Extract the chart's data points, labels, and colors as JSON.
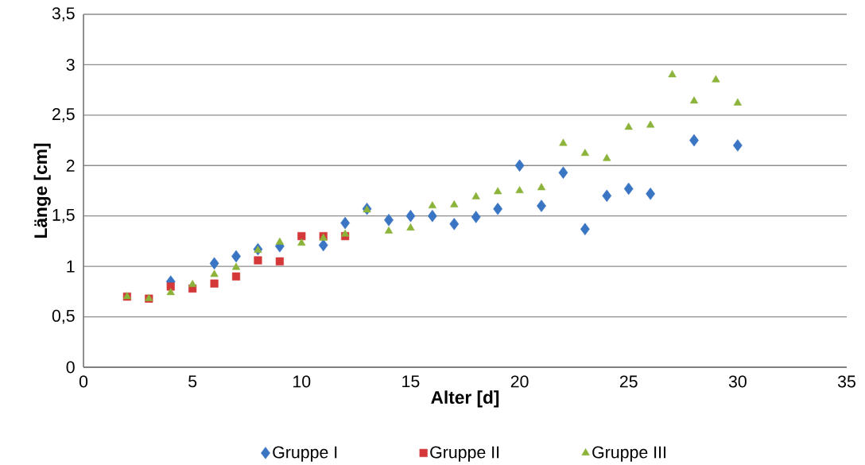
{
  "chart_data": {
    "type": "scatter",
    "xlabel": "Alter [d]",
    "ylabel": "Länge [cm]",
    "xlim": [
      0,
      35
    ],
    "xticks": [
      0,
      5,
      10,
      15,
      20,
      25,
      30,
      35
    ],
    "ylim": [
      0,
      3.5
    ],
    "yticks": [
      0,
      {
        "value": 0.5,
        "label": "0,5"
      },
      1,
      {
        "value": 1.5,
        "label": "1,5"
      },
      2,
      {
        "value": 2.5,
        "label": "2,5"
      },
      3,
      {
        "value": 3.5,
        "label": "3,5"
      }
    ],
    "grid": "y",
    "legend": "bottom",
    "series": [
      {
        "name": "Gruppe I",
        "color": "#3a75c4",
        "marker": "diamond",
        "x": [
          4,
          6,
          7,
          8,
          9,
          11,
          12,
          13,
          14,
          15,
          16,
          17,
          18,
          19,
          20,
          21,
          22,
          23,
          24,
          25,
          26,
          28,
          30
        ],
        "values": [
          0.85,
          1.03,
          1.1,
          1.17,
          1.2,
          1.21,
          1.43,
          1.57,
          1.46,
          1.5,
          1.5,
          1.42,
          1.49,
          1.57,
          2.0,
          1.6,
          1.93,
          1.37,
          1.7,
          1.77,
          1.72,
          2.25,
          2.2
        ]
      },
      {
        "name": "Gruppe II",
        "color": "#d43838",
        "marker": "square",
        "x": [
          2,
          3,
          4,
          5,
          6,
          7,
          8,
          9,
          10,
          11,
          12
        ],
        "values": [
          0.7,
          0.68,
          0.8,
          0.78,
          0.83,
          0.9,
          1.06,
          1.05,
          1.3,
          1.3,
          1.3
        ]
      },
      {
        "name": "Gruppe III",
        "color": "#8cb33a",
        "marker": "triangle",
        "x": [
          2,
          3,
          4,
          5,
          6,
          7,
          8,
          9,
          10,
          11,
          12,
          13,
          14,
          15,
          16,
          17,
          18,
          19,
          20,
          21,
          22,
          23,
          24,
          25,
          26,
          27,
          28,
          29,
          30
        ],
        "values": [
          0.7,
          0.68,
          0.74,
          0.82,
          0.92,
          0.99,
          1.16,
          1.24,
          1.23,
          1.28,
          1.32,
          1.56,
          1.35,
          1.38,
          1.6,
          1.61,
          1.69,
          1.74,
          1.75,
          1.78,
          2.22,
          2.12,
          2.07,
          2.38,
          2.4,
          2.9,
          2.64,
          2.85,
          2.62
        ]
      }
    ]
  }
}
